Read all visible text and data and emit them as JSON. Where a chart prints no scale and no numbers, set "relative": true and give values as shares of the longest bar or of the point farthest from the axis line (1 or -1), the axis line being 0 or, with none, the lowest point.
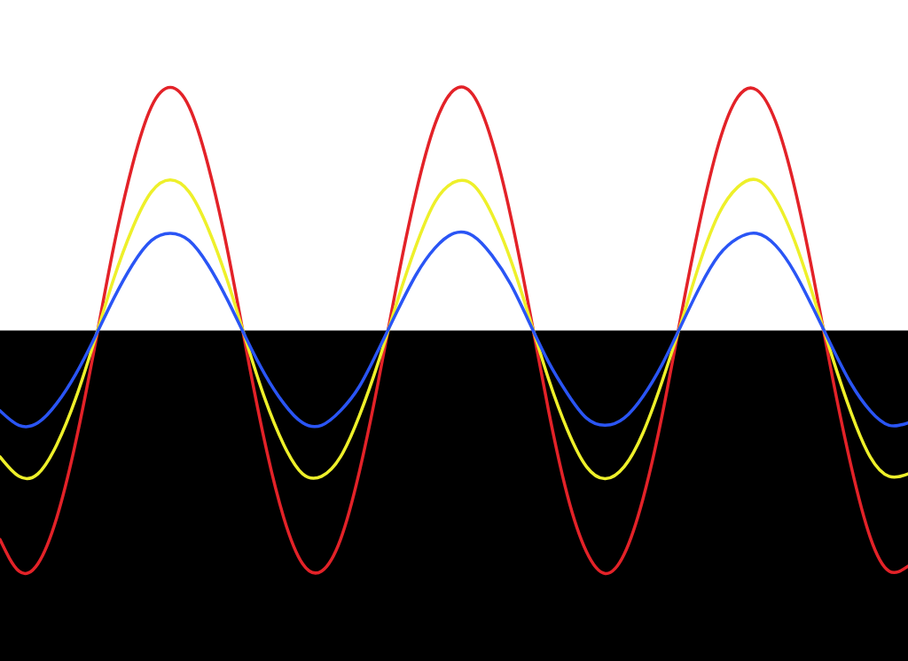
{
  "chart_data": {
    "type": "line",
    "relative": true,
    "categories": [
      null,
      null,
      null,
      null,
      null,
      null,
      null,
      null,
      null,
      null,
      null,
      null,
      null,
      null,
      null,
      null,
      null,
      null,
      null,
      null,
      null,
      null,
      null,
      null,
      null,
      null,
      null,
      null,
      null,
      null,
      null,
      null,
      null,
      null,
      null,
      null,
      null,
      null,
      null,
      null,
      null,
      null,
      null,
      null,
      null,
      null,
      null,
      null,
      null
    ],
    "bands": [
      {
        "axis": "y",
        "from": -1.36,
        "to": 0,
        "color": "#000000"
      }
    ],
    "series": [
      {
        "color": "#e32228",
        "values": [
          -0.86,
          -0.99,
          -0.96,
          -0.77,
          -0.46,
          -0.07,
          0.34,
          0.68,
          0.92,
          1.0,
          0.92,
          0.68,
          0.34,
          -0.07,
          -0.46,
          -0.77,
          -0.96,
          -0.99,
          -0.86,
          -0.58,
          -0.21,
          0.2,
          0.57,
          0.85,
          0.99,
          0.97,
          0.78,
          0.47,
          0.08,
          -0.33,
          -0.68,
          -0.91,
          -1.0,
          -0.92,
          -0.69,
          -0.35,
          0.06,
          0.45,
          0.77,
          0.96,
          0.99,
          0.86,
          0.59,
          0.22,
          -0.19,
          -0.56,
          -0.85,
          -0.99,
          -0.97
        ]
      },
      {
        "color": "#eef02a",
        "values": [
          -0.52,
          -0.6,
          -0.59,
          -0.47,
          -0.28,
          -0.04,
          0.21,
          0.42,
          0.57,
          0.62,
          0.57,
          0.42,
          0.21,
          -0.04,
          -0.28,
          -0.47,
          -0.59,
          -0.6,
          -0.52,
          -0.35,
          -0.13,
          0.12,
          0.35,
          0.53,
          0.61,
          0.6,
          0.48,
          0.29,
          0.05,
          -0.2,
          -0.41,
          -0.56,
          -0.61,
          -0.56,
          -0.42,
          -0.21,
          0.03,
          0.28,
          0.48,
          0.59,
          0.62,
          0.54,
          0.37,
          0.14,
          -0.11,
          -0.34,
          -0.52,
          -0.6,
          -0.59
        ]
      },
      {
        "color": "#2a55f5",
        "values": [
          -0.33,
          -0.39,
          -0.38,
          -0.3,
          -0.18,
          -0.03,
          0.13,
          0.27,
          0.37,
          0.4,
          0.37,
          0.27,
          0.13,
          -0.03,
          -0.18,
          -0.3,
          -0.38,
          -0.39,
          -0.33,
          -0.23,
          -0.08,
          0.08,
          0.23,
          0.34,
          0.4,
          0.39,
          0.31,
          0.19,
          0.03,
          -0.13,
          -0.26,
          -0.36,
          -0.39,
          -0.36,
          -0.27,
          -0.14,
          0.02,
          0.18,
          0.31,
          0.38,
          0.4,
          0.35,
          0.24,
          0.09,
          -0.07,
          -0.22,
          -0.33,
          -0.39,
          -0.38
        ]
      }
    ]
  }
}
